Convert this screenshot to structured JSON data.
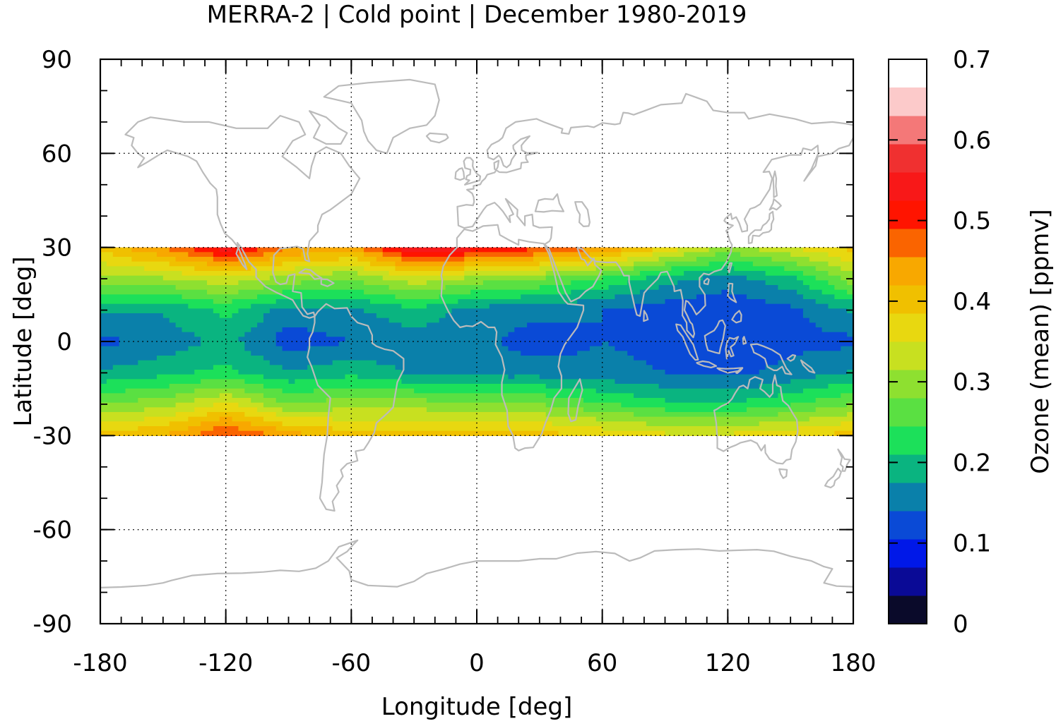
{
  "chart_data": {
    "type": "heatmap",
    "title": "MERRA-2 | Cold point | December 1980-2019",
    "xlabel": "Longitude [deg]",
    "ylabel": "Latitude [deg]",
    "xlim": [
      -180,
      180
    ],
    "ylim": [
      -90,
      90
    ],
    "data_lat_range": [
      -30,
      30
    ],
    "x_ticks": [
      -180,
      -120,
      -60,
      0,
      60,
      120,
      180
    ],
    "y_ticks": [
      90,
      60,
      30,
      0,
      -30,
      -60,
      -90
    ],
    "x_tick_labels": [
      "-180",
      "-120",
      "-60",
      "0",
      "60",
      "120",
      "180"
    ],
    "y_tick_labels": [
      "90",
      "60",
      "30",
      "0",
      "-30",
      "-60",
      "-90"
    ],
    "grid": true,
    "coastlines": true,
    "coastline_color": "#bbbbbb",
    "colorbar": {
      "label": "Ozone (mean) [ppmv]",
      "min": 0,
      "max": 0.7,
      "step": 0.035,
      "ticks": [
        0,
        0.1,
        0.2,
        0.3,
        0.4,
        0.5,
        0.6,
        0.7
      ],
      "tick_labels": [
        "0",
        "0.1",
        "0.2",
        "0.3",
        "0.4",
        "0.5",
        "0.6",
        "0.7"
      ],
      "colors": [
        "#0a0a2a",
        "#0a0a96",
        "#0018e8",
        "#0a4ad6",
        "#0a80aa",
        "#0ab480",
        "#1ce05a",
        "#5ae042",
        "#8ee030",
        "#c8e020",
        "#e8d810",
        "#f0c000",
        "#f8a800",
        "#fa6400",
        "#ff1400",
        "#f81818",
        "#f03030",
        "#f47878",
        "#fccaca"
      ]
    },
    "field": {
      "lon": [
        -180,
        -150,
        -120,
        -90,
        -60,
        -30,
        0,
        30,
        60,
        90,
        120,
        150,
        180
      ],
      "lat": [
        30,
        20,
        10,
        0,
        -10,
        -20,
        -30
      ],
      "values": [
        [
          0.4,
          0.46,
          0.55,
          0.46,
          0.44,
          0.56,
          0.54,
          0.5,
          0.46,
          0.38,
          0.3,
          0.35,
          0.4
        ],
        [
          0.3,
          0.31,
          0.34,
          0.3,
          0.28,
          0.34,
          0.3,
          0.28,
          0.24,
          0.19,
          0.16,
          0.2,
          0.3
        ],
        [
          0.18,
          0.18,
          0.22,
          0.16,
          0.17,
          0.2,
          0.16,
          0.15,
          0.14,
          0.12,
          0.11,
          0.13,
          0.18
        ],
        [
          0.13,
          0.15,
          0.19,
          0.12,
          0.14,
          0.16,
          0.15,
          0.12,
          0.14,
          0.13,
          0.12,
          0.13,
          0.13
        ],
        [
          0.18,
          0.2,
          0.22,
          0.18,
          0.2,
          0.17,
          0.16,
          0.16,
          0.15,
          0.14,
          0.13,
          0.15,
          0.18
        ],
        [
          0.28,
          0.3,
          0.36,
          0.28,
          0.3,
          0.3,
          0.28,
          0.28,
          0.25,
          0.22,
          0.21,
          0.24,
          0.28
        ],
        [
          0.4,
          0.42,
          0.5,
          0.44,
          0.4,
          0.4,
          0.4,
          0.4,
          0.38,
          0.36,
          0.36,
          0.38,
          0.4
        ]
      ]
    }
  }
}
